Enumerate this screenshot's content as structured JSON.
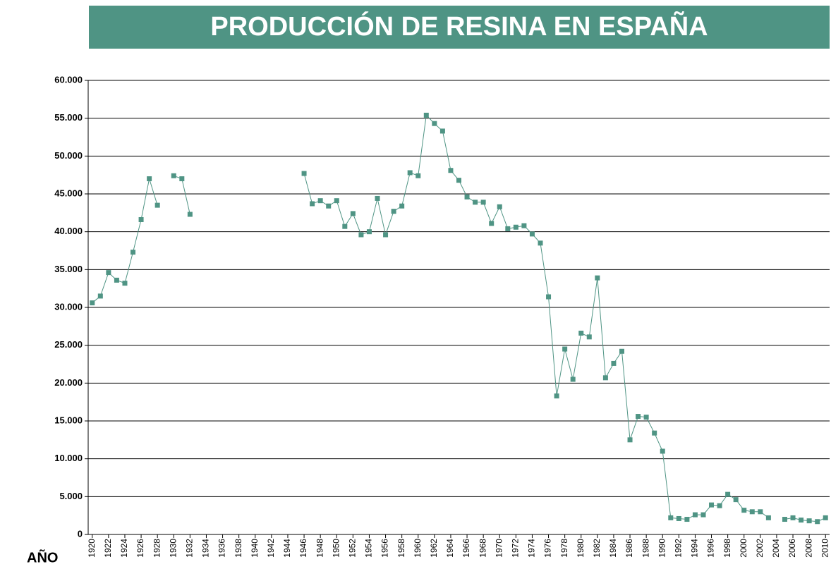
{
  "chart_data": {
    "type": "line",
    "title": "PRODUCCIÓN DE RESINA EN ESPAÑA",
    "x_label": "AÑO",
    "x": [
      1920,
      1921,
      1922,
      1923,
      1924,
      1925,
      1926,
      1927,
      1928,
      1929,
      1930,
      1931,
      1932,
      1933,
      1934,
      1935,
      1936,
      1937,
      1938,
      1939,
      1940,
      1941,
      1942,
      1943,
      1944,
      1945,
      1946,
      1947,
      1948,
      1949,
      1950,
      1951,
      1952,
      1953,
      1954,
      1955,
      1956,
      1957,
      1958,
      1959,
      1960,
      1961,
      1962,
      1963,
      1964,
      1965,
      1966,
      1967,
      1968,
      1969,
      1970,
      1971,
      1972,
      1973,
      1974,
      1975,
      1976,
      1977,
      1978,
      1979,
      1980,
      1981,
      1982,
      1983,
      1984,
      1985,
      1986,
      1987,
      1988,
      1989,
      1990,
      1991,
      1992,
      1993,
      1994,
      1995,
      1996,
      1997,
      1998,
      1999,
      2000,
      2001,
      2002,
      2003,
      2004,
      2005,
      2006,
      2007,
      2008,
      2009,
      2010
    ],
    "series": [
      {
        "color": "#4f9484",
        "values": [
          30600,
          31500,
          34600,
          33600,
          33200,
          37300,
          41600,
          47000,
          43500,
          null,
          47400,
          47000,
          42300,
          null,
          null,
          null,
          null,
          null,
          null,
          null,
          null,
          null,
          null,
          null,
          null,
          null,
          47700,
          43700,
          44100,
          43400,
          44100,
          40700,
          42400,
          39600,
          40000,
          44400,
          39600,
          42700,
          43400,
          47800,
          47400,
          55400,
          54300,
          53300,
          48100,
          46800,
          44600,
          43900,
          43900,
          41100,
          43300,
          40400,
          40600,
          40800,
          39700,
          38500,
          31400,
          18300,
          24500,
          20500,
          26600,
          26100,
          33900,
          20700,
          22600,
          24200,
          12500,
          15600,
          15500,
          13400,
          11000,
          2200,
          2100,
          2000,
          2600,
          2600,
          3900,
          3800,
          5300,
          4600,
          3200,
          3000,
          3000,
          2200,
          null,
          2000,
          2200,
          1900,
          1800,
          1700,
          2200
        ]
      }
    ],
    "xlim": [
      1919.5,
      2010.5
    ],
    "xticks": [
      1920,
      1922,
      1924,
      1926,
      1928,
      1930,
      1932,
      1934,
      1936,
      1938,
      1940,
      1942,
      1944,
      1946,
      1948,
      1950,
      1952,
      1954,
      1956,
      1958,
      1960,
      1962,
      1964,
      1966,
      1968,
      1970,
      1972,
      1974,
      1976,
      1978,
      1980,
      1982,
      1984,
      1986,
      1988,
      1990,
      1992,
      1994,
      1996,
      1998,
      2000,
      2002,
      2004,
      2006,
      2008,
      2010
    ],
    "ylim": [
      0,
      60000
    ],
    "yticks": [
      0,
      {
        "value": 5000,
        "label": "5.000"
      },
      {
        "value": 10000,
        "label": "10.000"
      },
      {
        "value": 15000,
        "label": "15.000"
      },
      {
        "value": 20000,
        "label": "20.000"
      },
      {
        "value": 25000,
        "label": "25.000"
      },
      {
        "value": 30000,
        "label": "30.000"
      },
      {
        "value": 35000,
        "label": "35.000"
      },
      {
        "value": 40000,
        "label": "40.000"
      },
      {
        "value": 45000,
        "label": "45.000"
      },
      {
        "value": 50000,
        "label": "50.000"
      },
      {
        "value": 55000,
        "label": "55.000"
      },
      {
        "value": 60000,
        "label": "60.000"
      }
    ],
    "grid": true
  }
}
